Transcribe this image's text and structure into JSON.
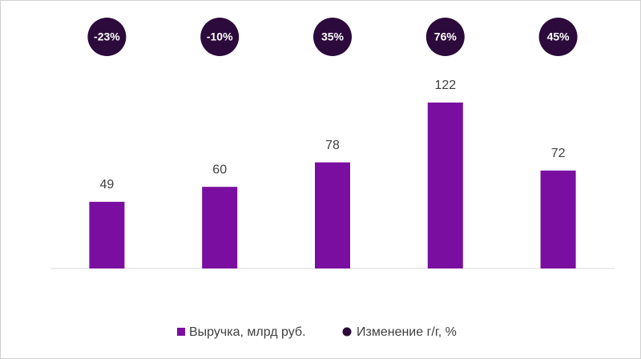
{
  "chart_data": {
    "type": "bar",
    "categories": [
      null,
      null,
      null,
      null,
      null
    ],
    "series": [
      {
        "name": "Выручка, млрд руб.",
        "color": "#7a0ea0",
        "values": [
          49,
          60,
          78,
          122,
          72
        ]
      },
      {
        "name": "Изменение г/г, %",
        "color": "#2c0a3b",
        "values": [
          -23,
          -10,
          35,
          76,
          45
        ],
        "value_labels": [
          "-23%",
          "-10%",
          "35%",
          "76%",
          "45%"
        ]
      }
    ],
    "ylim": [
      0,
      140
    ]
  }
}
